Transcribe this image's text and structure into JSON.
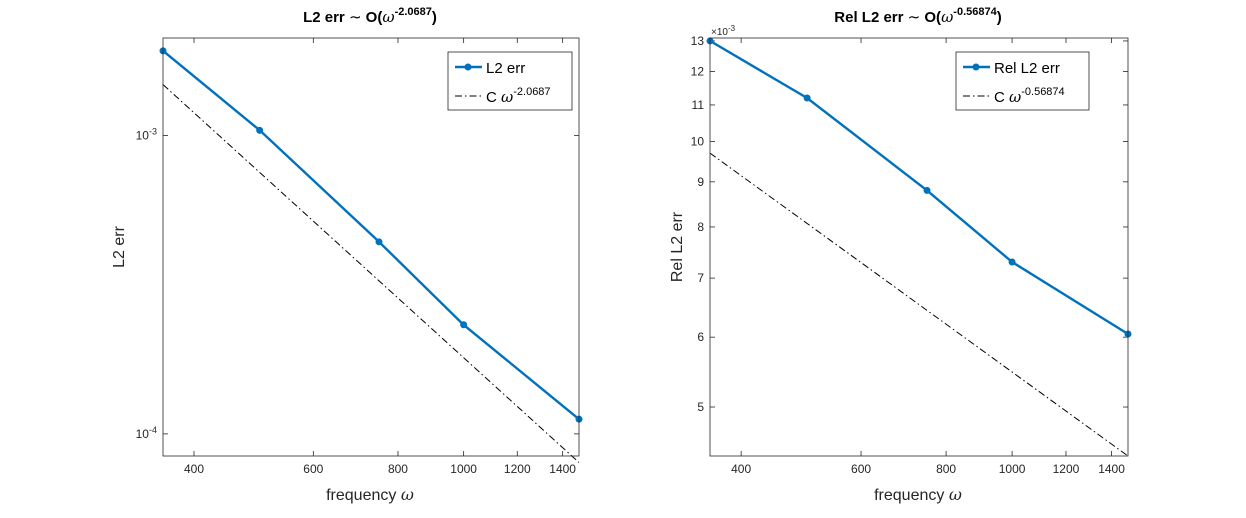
{
  "chart_data": [
    {
      "type": "line",
      "title": "L2 err ~ O(ω^-2.0687)",
      "title_parts": {
        "main": "L2 err ",
        "sim": "∼",
        "o": " O(",
        "omega": "ω",
        "exp": "-2.0687",
        "close": ")"
      },
      "xlabel_parts": {
        "text": "frequency ",
        "omega": "ω"
      },
      "ylabel": "L2 err",
      "xscale": "log",
      "yscale": "log",
      "xlim": [
        360,
        1480
      ],
      "ylim": [
        8.43e-05,
        0.00212
      ],
      "xticks": [
        400,
        600,
        800,
        1000,
        1200,
        1400
      ],
      "xtick_labels": [
        "400",
        "600",
        "800",
        "1000",
        "1200",
        "1400"
      ],
      "yticks": [
        {
          "value": 0.001,
          "base": "10",
          "exp": "-3"
        },
        {
          "value": 0.0001,
          "base": "10",
          "exp": "-4"
        }
      ],
      "series": [
        {
          "name": "L2 err",
          "color": "#0072BD",
          "style": "solid-marker",
          "x": [
            360,
            500,
            750,
            1000,
            1480
          ],
          "y": [
            0.00192,
            0.00104,
            0.00044,
            0.000232,
            0.000112
          ]
        },
        {
          "name": "C ω^-2.0687",
          "legend_parts": {
            "c": "C ",
            "omega": "ω",
            "exp": "-2.0687"
          },
          "color": "#000000",
          "style": "dashdot",
          "x": [
            360,
            1480
          ],
          "y": [
            0.00148,
            8.02e-05
          ]
        }
      ],
      "legend": "top-right",
      "grid": false
    },
    {
      "type": "line",
      "title": "Rel L2 err ~ O(ω^-0.56874)",
      "title_parts": {
        "main": "Rel L2 err ",
        "sim": "∼",
        "o": " O(",
        "omega": "ω",
        "exp": "-0.56874",
        "close": ")"
      },
      "xlabel_parts": {
        "text": "frequency ",
        "omega": "ω"
      },
      "ylabel": "Rel L2 err",
      "xscale": "log",
      "yscale": "log",
      "xlim": [
        360,
        1480
      ],
      "ylim": [
        0.0044,
        0.0131
      ],
      "xticks": [
        400,
        600,
        800,
        1000,
        1200,
        1400
      ],
      "xtick_labels": [
        "400",
        "600",
        "800",
        "1000",
        "1200",
        "1400"
      ],
      "yticks": [
        0.005,
        0.006,
        0.007,
        0.008,
        0.009,
        0.01,
        0.011,
        0.012,
        0.013
      ],
      "ytick_labels": [
        "5",
        "6",
        "7",
        "8",
        "9",
        "10",
        "11",
        "12",
        "13"
      ],
      "multiplier": {
        "prefix": "×",
        "base": "10",
        "exp": "-3"
      },
      "series": [
        {
          "name": "Rel L2 err",
          "color": "#0072BD",
          "style": "solid-marker",
          "x": [
            360,
            500,
            750,
            1000,
            1480
          ],
          "y": [
            0.013,
            0.0112,
            0.0088,
            0.0073,
            0.00605
          ]
        },
        {
          "name": "C ω^-0.56874",
          "legend_parts": {
            "c": "C ",
            "omega": "ω",
            "exp": "-0.56874"
          },
          "color": "#000000",
          "style": "dashdot",
          "x": [
            360,
            1480
          ],
          "y": [
            0.0097,
            0.0044
          ]
        }
      ],
      "legend": "top-right",
      "grid": false
    }
  ]
}
